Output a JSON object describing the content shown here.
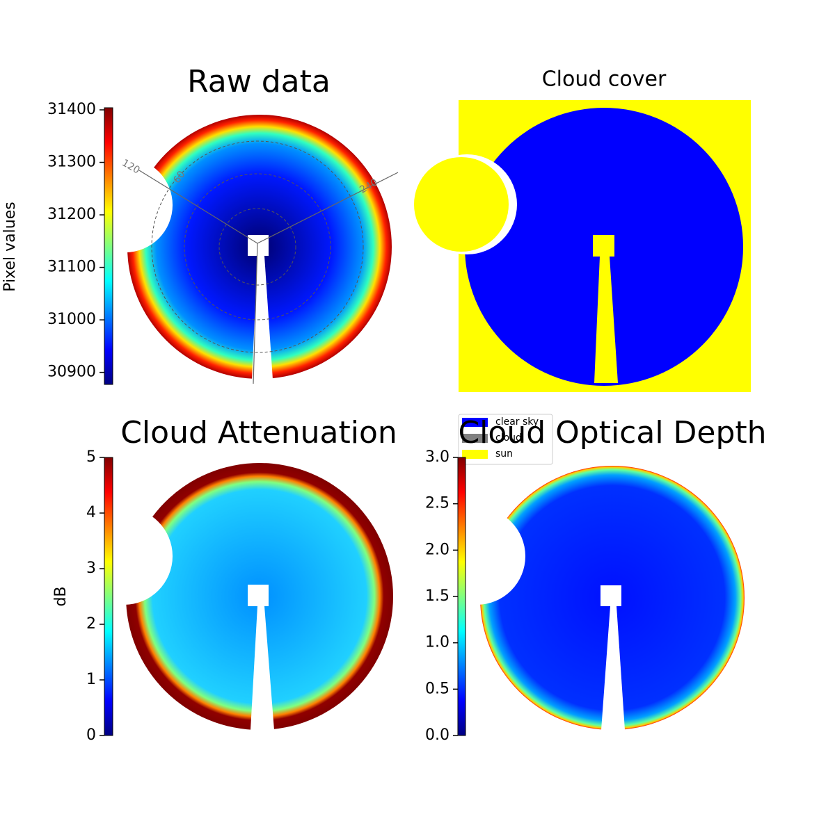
{
  "chart_data": [
    {
      "type": "heatmap",
      "title": "Raw data",
      "colormap": "jet",
      "ylabel": "Pixel values",
      "ylim": [
        30877,
        31404
      ],
      "yticks": [
        30900,
        31000,
        31100,
        31200,
        31300,
        31400
      ],
      "annotations": [
        "120",
        "60",
        "240"
      ]
    },
    {
      "type": "image",
      "title": "Cloud cover",
      "legend": [
        {
          "name": "clear sky",
          "color": "#0000ff"
        },
        {
          "name": "cloud",
          "color": "#808080"
        },
        {
          "name": "sun",
          "color": "#ffff00"
        }
      ]
    },
    {
      "type": "heatmap",
      "title": "Cloud Attenuation",
      "colormap": "jet",
      "ylabel": "dB",
      "ylim": [
        0,
        5
      ],
      "yticks": [
        0,
        1,
        2,
        3,
        4,
        5
      ]
    },
    {
      "type": "heatmap",
      "title": "Cloud Optical Depth",
      "colormap": "jet",
      "ylim": [
        0,
        3
      ],
      "yticks": [
        {
          "value": 0,
          "label": "0.0"
        },
        0.5,
        {
          "value": 1,
          "label": "1.0"
        },
        1.5,
        {
          "value": 2,
          "label": "2.0"
        },
        2.5,
        {
          "value": 3,
          "label": "3.0"
        }
      ]
    }
  ]
}
